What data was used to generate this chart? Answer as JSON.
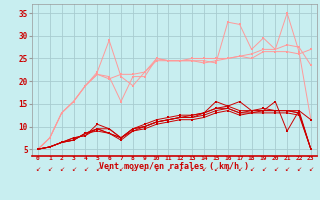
{
  "bg_color": "#c8eef0",
  "grid_color": "#a8ccd0",
  "text_color": "#cc0000",
  "xlabel": "Vent moyen/en rafales ( km/h )",
  "x_ticks": [
    0,
    1,
    2,
    3,
    4,
    5,
    6,
    7,
    8,
    9,
    10,
    11,
    12,
    13,
    14,
    15,
    16,
    17,
    18,
    19,
    20,
    21,
    22,
    23
  ],
  "ylim": [
    3.5,
    37
  ],
  "yticks": [
    5,
    10,
    15,
    20,
    25,
    30,
    35
  ],
  "lines_light": [
    [
      5.0,
      7.5,
      13.0,
      15.5,
      19.0,
      21.5,
      20.5,
      21.5,
      21.5,
      22.0,
      24.5,
      24.5,
      24.5,
      24.5,
      24.0,
      24.5,
      25.0,
      25.5,
      26.0,
      27.0,
      27.0,
      28.0,
      27.5,
      23.5
    ],
    [
      5.0,
      7.5,
      13.0,
      15.5,
      19.0,
      22.0,
      29.0,
      21.0,
      19.0,
      22.0,
      25.0,
      24.5,
      24.5,
      24.5,
      24.5,
      24.0,
      33.0,
      32.5,
      27.0,
      29.5,
      27.0,
      35.0,
      26.5,
      11.5
    ],
    [
      5.0,
      7.5,
      13.0,
      15.5,
      19.0,
      21.5,
      21.0,
      15.5,
      21.0,
      21.0,
      25.0,
      24.5,
      24.5,
      25.0,
      25.0,
      25.0,
      25.0,
      25.5,
      25.0,
      26.5,
      26.5,
      26.5,
      26.0,
      27.0
    ]
  ],
  "lines_dark": [
    [
      5.0,
      5.5,
      6.5,
      7.5,
      8.0,
      10.5,
      9.5,
      7.5,
      9.5,
      10.0,
      11.0,
      11.5,
      12.0,
      12.5,
      13.0,
      15.5,
      14.5,
      15.5,
      13.5,
      13.5,
      15.5,
      9.0,
      13.5,
      5.0
    ],
    [
      5.0,
      5.5,
      6.5,
      7.5,
      8.0,
      9.5,
      8.5,
      7.5,
      9.0,
      10.0,
      11.0,
      11.5,
      12.0,
      12.0,
      13.0,
      14.0,
      14.5,
      13.5,
      13.5,
      14.0,
      13.5,
      13.5,
      13.5,
      11.5
    ],
    [
      5.0,
      5.5,
      6.5,
      7.0,
      8.5,
      9.5,
      8.5,
      7.5,
      9.5,
      10.5,
      11.5,
      12.0,
      12.5,
      12.5,
      13.0,
      14.0,
      14.0,
      13.0,
      13.5,
      13.5,
      13.5,
      13.5,
      13.0,
      5.0
    ],
    [
      5.0,
      5.5,
      6.5,
      7.0,
      8.5,
      9.5,
      9.5,
      7.5,
      9.5,
      10.0,
      11.0,
      11.5,
      12.0,
      12.0,
      12.5,
      13.5,
      14.0,
      13.0,
      13.0,
      13.5,
      13.5,
      13.5,
      13.0,
      5.0
    ],
    [
      5.0,
      5.5,
      6.5,
      7.0,
      8.5,
      9.0,
      8.5,
      7.0,
      9.0,
      9.5,
      10.5,
      11.0,
      11.5,
      11.5,
      12.0,
      13.0,
      13.5,
      12.5,
      13.0,
      13.0,
      13.0,
      13.0,
      12.5,
      5.0
    ]
  ],
  "light_color": "#ff9999",
  "dark_color": "#cc0000",
  "marker_size": 2.0,
  "linewidth": 0.7
}
